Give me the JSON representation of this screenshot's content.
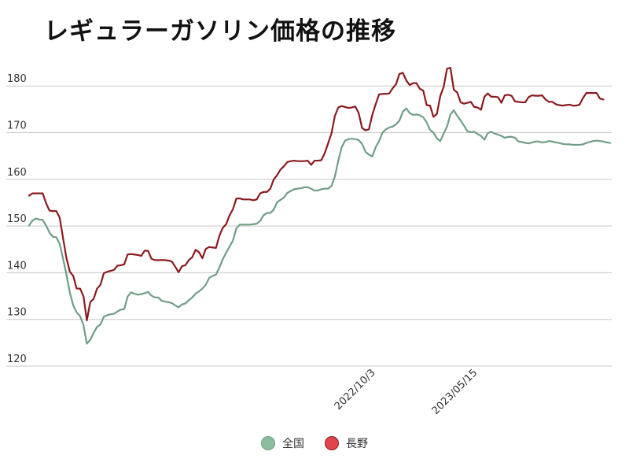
{
  "chart_data": {
    "type": "line",
    "title": "レギュラーガソリン価格の推移",
    "xlabel": "",
    "ylabel": "",
    "ylim": [
      120,
      185
    ],
    "yticks": [
      120,
      130,
      140,
      150,
      160,
      170,
      180
    ],
    "grid": true,
    "legend": "bottom",
    "x_tick_labels": [
      {
        "label": "2022/10/3",
        "index": 102
      },
      {
        "label": "2023/05/15",
        "index": 132
      }
    ],
    "series": [
      {
        "name": "全国",
        "color": "#6f9e86",
        "fill": "#8bbd9d",
        "values": [
          150.1,
          151.2,
          151.6,
          151.4,
          151.3,
          150.1,
          148.6,
          147.7,
          147.6,
          146.2,
          143.0,
          139.6,
          135.7,
          133.0,
          131.5,
          130.7,
          128.8,
          124.8,
          125.6,
          127.1,
          128.4,
          128.9,
          130.6,
          130.9,
          131.1,
          131.2,
          131.7,
          132.1,
          132.2,
          134.9,
          135.8,
          135.5,
          135.3,
          135.4,
          135.6,
          135.9,
          135.1,
          134.7,
          134.7,
          134.0,
          133.8,
          133.7,
          133.5,
          133.0,
          132.6,
          133.2,
          133.4,
          134.1,
          134.7,
          135.5,
          136.0,
          136.6,
          137.4,
          138.9,
          139.3,
          139.6,
          141.1,
          142.9,
          144.3,
          145.6,
          146.9,
          149.5,
          150.3,
          150.3,
          150.3,
          150.3,
          150.4,
          150.5,
          151.1,
          152.3,
          152.8,
          152.8,
          153.5,
          155.1,
          155.6,
          156.1,
          157.1,
          157.5,
          157.9,
          158.0,
          158.1,
          158.3,
          158.3,
          158.0,
          157.6,
          157.6,
          157.9,
          158.0,
          158.0,
          158.6,
          160.6,
          164.0,
          166.9,
          168.3,
          168.6,
          168.7,
          168.6,
          168.4,
          167.6,
          165.9,
          165.3,
          164.9,
          166.9,
          168.2,
          170.0,
          170.7,
          171.1,
          171.3,
          171.8,
          172.6,
          174.5,
          175.2,
          174.2,
          173.8,
          173.9,
          173.7,
          173.3,
          172.2,
          170.6,
          170.0,
          168.8,
          168.2,
          169.8,
          171.3,
          173.9,
          174.8,
          173.6,
          172.6,
          171.5,
          170.3,
          170.1,
          170.2,
          169.7,
          169.3,
          168.5,
          169.9,
          170.2,
          169.8,
          169.6,
          169.3,
          168.9,
          169.1,
          169.1,
          168.9,
          168.1,
          168.0,
          167.8,
          167.7,
          167.9,
          168.1,
          168.1,
          167.9,
          168.0,
          168.2,
          168.1,
          167.9,
          167.8,
          167.6,
          167.5,
          167.5,
          167.4,
          167.4,
          167.4,
          167.5,
          167.8,
          168.0,
          168.2,
          168.3,
          168.2,
          168.1,
          167.9,
          167.8
        ]
      },
      {
        "name": "長野",
        "color": "#8b1a1f",
        "fill": "#e0454b",
        "values": [
          156.5,
          157.0,
          157.0,
          157.0,
          157.0,
          154.9,
          153.3,
          153.2,
          153.2,
          151.8,
          147.4,
          143.1,
          140.2,
          139.3,
          136.6,
          136.6,
          135.0,
          129.8,
          133.7,
          134.4,
          136.6,
          137.4,
          139.9,
          140.2,
          140.4,
          140.6,
          141.5,
          141.6,
          141.8,
          143.9,
          144.0,
          143.9,
          143.8,
          143.6,
          144.7,
          144.7,
          143.0,
          142.7,
          142.7,
          142.7,
          142.7,
          142.6,
          142.4,
          141.3,
          140.1,
          141.4,
          141.6,
          142.7,
          143.3,
          144.9,
          144.4,
          143.1,
          145.1,
          145.5,
          145.4,
          145.3,
          147.9,
          149.6,
          150.4,
          152.3,
          153.6,
          155.9,
          155.9,
          155.7,
          155.7,
          155.7,
          155.5,
          155.7,
          157.0,
          157.3,
          157.3,
          158.0,
          160.0,
          160.9,
          162.1,
          162.8,
          163.7,
          163.9,
          164.0,
          163.9,
          163.9,
          163.9,
          164.0,
          163.1,
          164.0,
          164.0,
          164.1,
          165.6,
          167.7,
          169.9,
          173.6,
          175.4,
          175.7,
          175.5,
          175.3,
          175.4,
          175.6,
          174.2,
          171.0,
          170.5,
          170.7,
          173.8,
          176.1,
          178.2,
          178.3,
          178.3,
          178.4,
          179.5,
          180.4,
          182.6,
          182.8,
          181.2,
          180.2,
          180.6,
          180.6,
          179.4,
          179.0,
          175.9,
          175.8,
          173.4,
          174.0,
          177.8,
          179.8,
          183.7,
          183.9,
          179.2,
          178.6,
          176.5,
          176.2,
          176.4,
          176.6,
          175.5,
          175.4,
          174.9,
          177.7,
          178.4,
          177.7,
          177.7,
          177.6,
          176.4,
          178.0,
          178.1,
          177.9,
          176.7,
          176.6,
          176.5,
          176.5,
          177.6,
          178.0,
          177.9,
          177.9,
          178.0,
          177.1,
          176.6,
          176.6,
          176.1,
          175.9,
          175.8,
          175.9,
          176.0,
          175.8,
          175.8,
          176.0,
          177.4,
          178.5,
          178.5,
          178.5,
          178.5,
          177.3,
          177.1
        ]
      }
    ]
  }
}
